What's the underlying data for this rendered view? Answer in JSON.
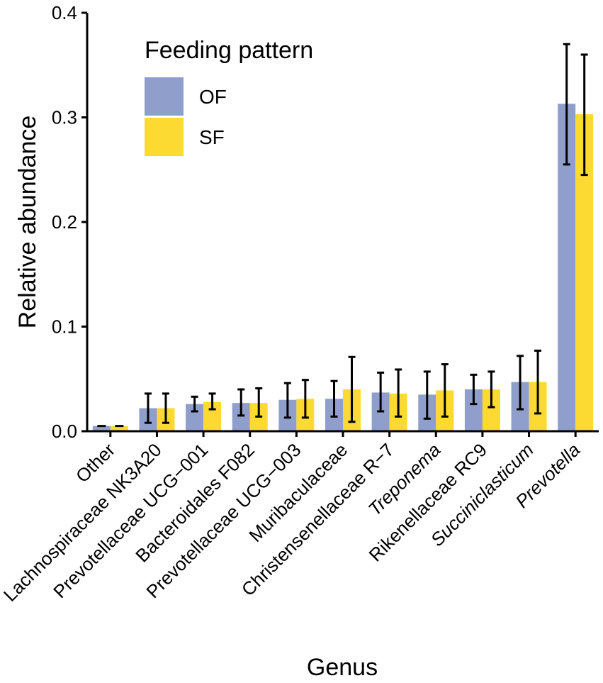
{
  "chart_data": {
    "type": "bar",
    "title": "",
    "xlabel": "Genus",
    "ylabel": "Relative abundance",
    "ylim": [
      0,
      0.4
    ],
    "yticks": [
      "0.0",
      "0.1",
      "0.2",
      "0.3",
      "0.4"
    ],
    "yticks_values": [
      0,
      0.1,
      0.2,
      0.3,
      0.4
    ],
    "legend_title": "Feeding pattern",
    "legend_position": "top-left",
    "categories": [
      "Other",
      "Lachnospiraceae NK3A20",
      "Prevotellaceae UCG−001",
      "Bacteroidales F082",
      "Prevotellaceae UCG−003",
      "Muribaculaceae",
      "Christensenellaceae R−7",
      "Treponema",
      "Rikenellaceae RC9",
      "Succiniclasticum",
      "Prevotella"
    ],
    "italic_categories": [
      "Treponema",
      "Succiniclasticum",
      "Prevotella"
    ],
    "series": [
      {
        "name": "OF",
        "color": "#8F9ECB",
        "values": [
          0.005,
          0.022,
          0.026,
          0.027,
          0.03,
          0.031,
          0.037,
          0.035,
          0.04,
          0.047,
          0.313
        ],
        "error_low": [
          null,
          0.008,
          0.019,
          0.015,
          0.013,
          0.014,
          0.019,
          0.012,
          0.026,
          0.021,
          0.255
        ],
        "error_high": [
          null,
          0.036,
          0.033,
          0.04,
          0.046,
          0.048,
          0.056,
          0.057,
          0.054,
          0.072,
          0.37
        ]
      },
      {
        "name": "SF",
        "color": "#FDDA32",
        "values": [
          0.005,
          0.022,
          0.028,
          0.027,
          0.031,
          0.04,
          0.036,
          0.039,
          0.04,
          0.047,
          0.303
        ],
        "error_low": [
          null,
          0.008,
          0.021,
          0.014,
          0.013,
          0.009,
          0.014,
          0.014,
          0.023,
          0.017,
          0.245
        ],
        "error_high": [
          null,
          0.036,
          0.036,
          0.041,
          0.049,
          0.071,
          0.059,
          0.064,
          0.057,
          0.077,
          0.36
        ]
      }
    ]
  }
}
